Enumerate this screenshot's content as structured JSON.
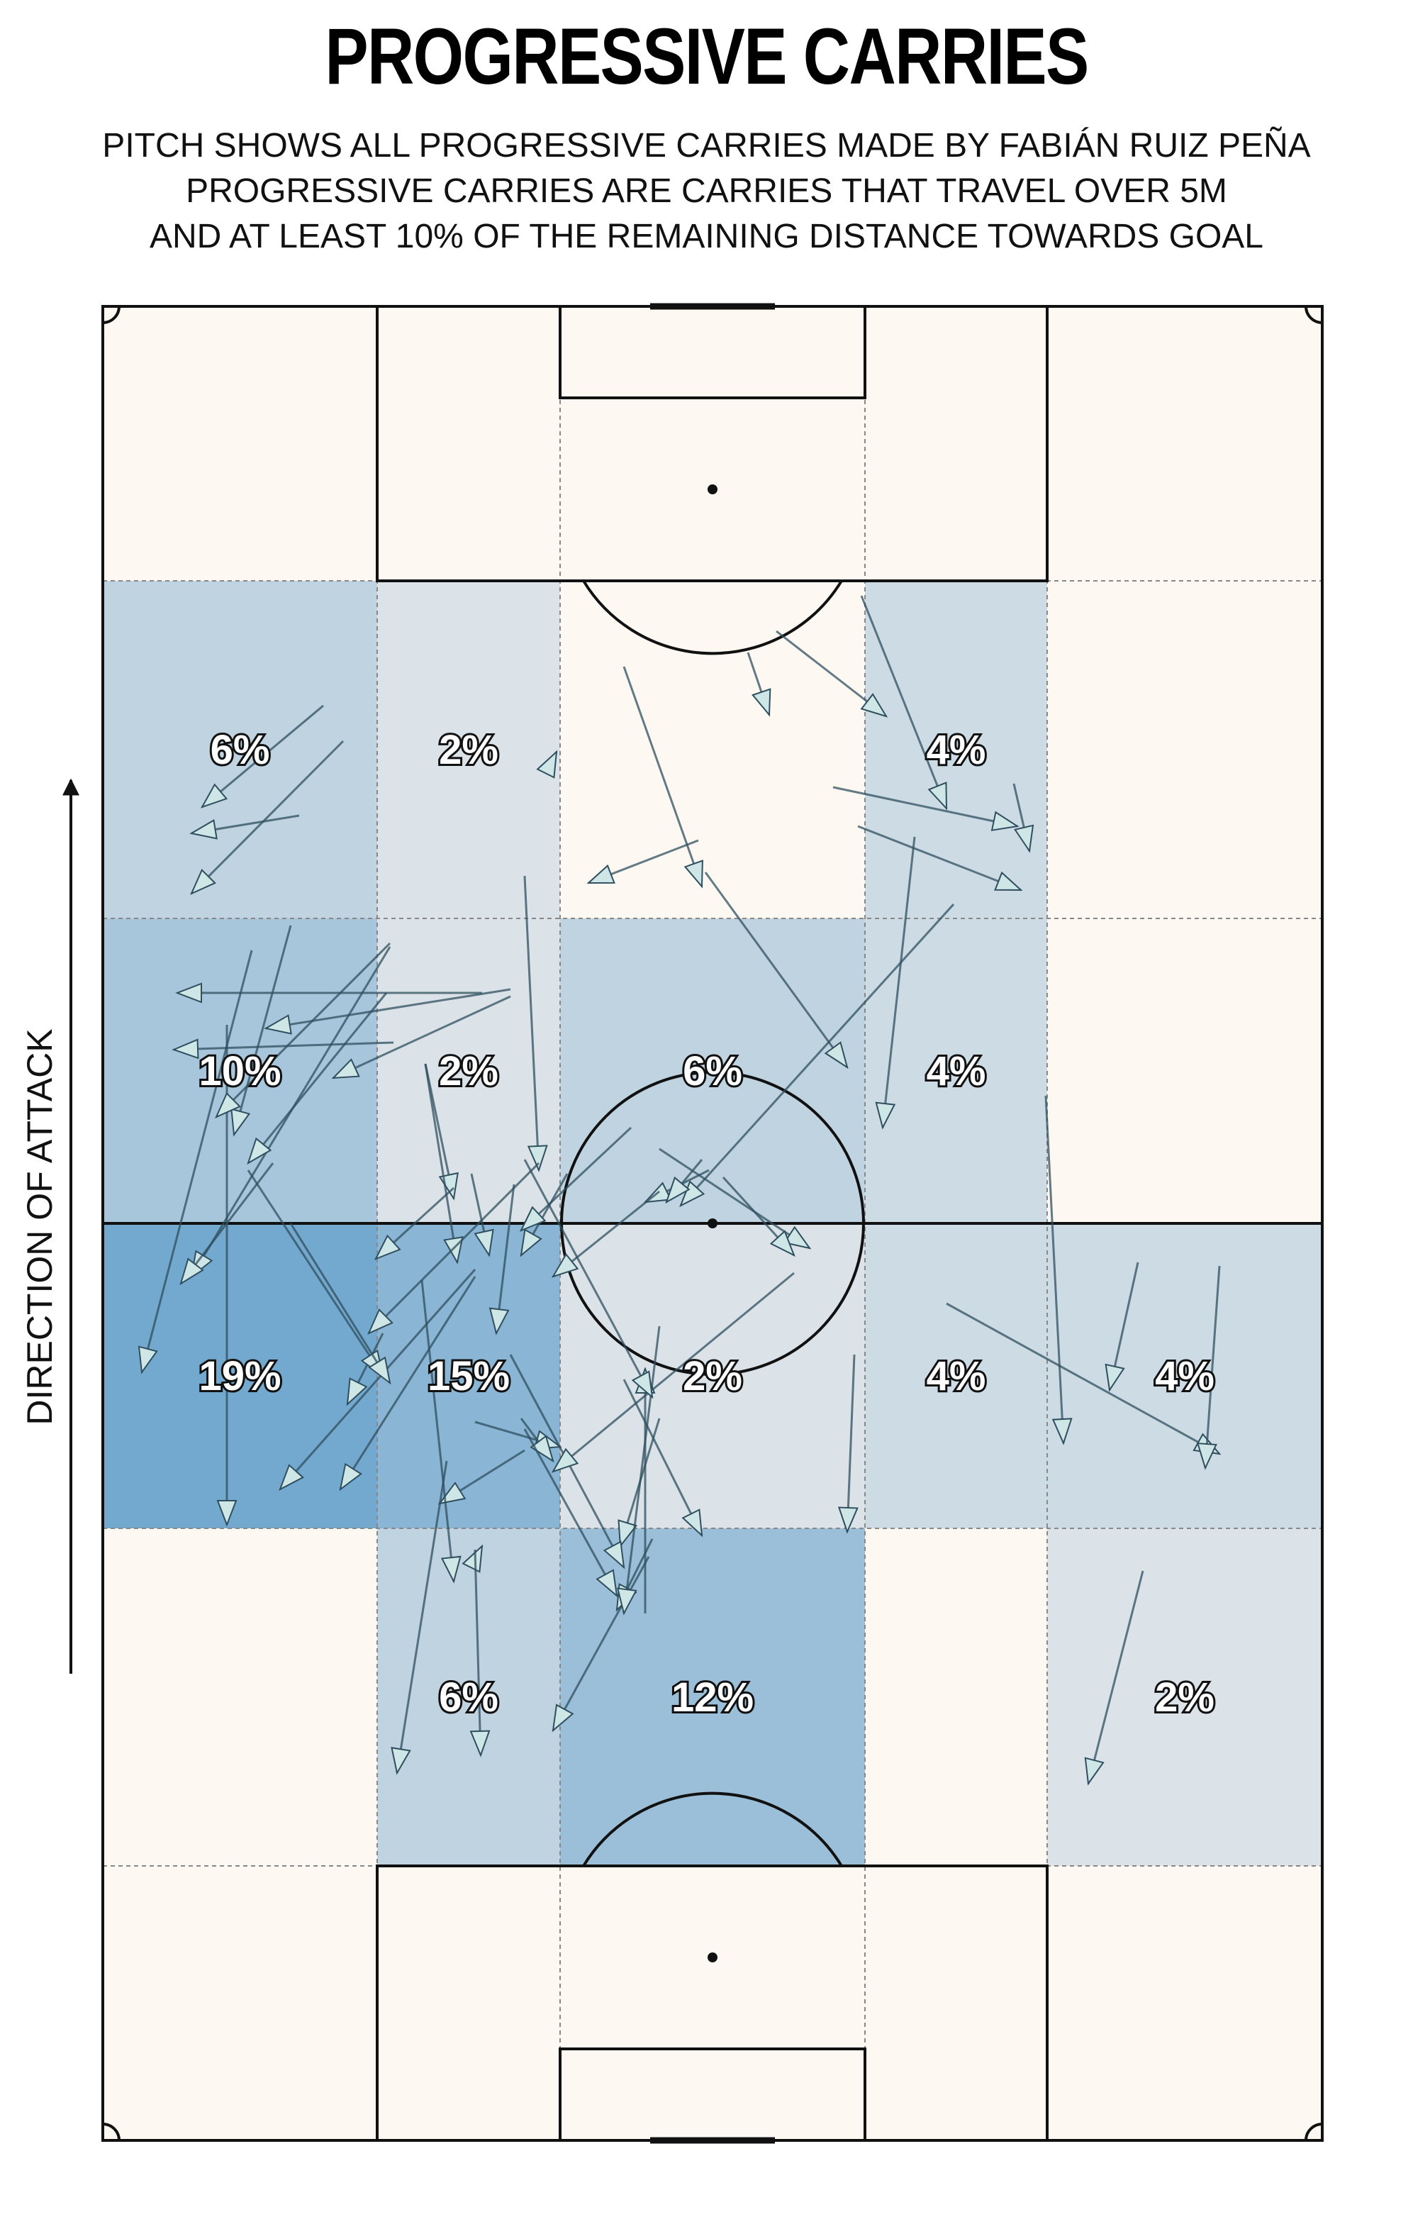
{
  "title": "PROGRESSIVE CARRIES",
  "subtitle_lines": [
    "PITCH SHOWS ALL PROGRESSIVE CARRIES MADE BY FABIÁN RUIZ PEÑA",
    "PROGRESSIVE CARRIES ARE CARRIES THAT TRAVEL OVER 5M",
    "AND AT LEAST 10% OF THE REMAINING DISTANCE TOWARDS GOAL"
  ],
  "attack_label": "DIRECTION OF ATTACK",
  "colors": {
    "pitch": "#fdf9f2",
    "lines": "#111111",
    "arrow_fill": "#cfe6e6",
    "arrow_stroke": "#2f4f5f",
    "heat_max": "#74a9cf"
  },
  "chart_data": {
    "type": "heatmap",
    "grid": "5 columns x 6 rows, direction of attack upward",
    "zones": [
      {
        "row": 1,
        "col": 0,
        "label": "6%",
        "value": 6
      },
      {
        "row": 1,
        "col": 1,
        "label": "2%",
        "value": 2
      },
      {
        "row": 1,
        "col": 3,
        "label": "4%",
        "value": 4
      },
      {
        "row": 2,
        "col": 0,
        "label": "10%",
        "value": 10
      },
      {
        "row": 2,
        "col": 1,
        "label": "2%",
        "value": 2
      },
      {
        "row": 2,
        "col": 2,
        "label": "6%",
        "value": 6
      },
      {
        "row": 2,
        "col": 3,
        "label": "4%",
        "value": 4
      },
      {
        "row": 3,
        "col": 0,
        "label": "19%",
        "value": 19
      },
      {
        "row": 3,
        "col": 1,
        "label": "15%",
        "value": 15
      },
      {
        "row": 3,
        "col": 2,
        "label": "2%",
        "value": 2
      },
      {
        "row": 3,
        "col": 3,
        "label": "4%",
        "value": 4
      },
      {
        "row": 3,
        "col": 4,
        "label": "4%",
        "value": 4
      },
      {
        "row": 4,
        "col": 1,
        "label": "6%",
        "value": 6
      },
      {
        "row": 4,
        "col": 2,
        "label": "12%",
        "value": 12
      },
      {
        "row": 4,
        "col": 4,
        "label": "2%",
        "value": 2
      }
    ],
    "carries": [
      [
        285,
        1138,
        456,
        995
      ],
      [
        270,
        1260,
        484,
        1045
      ],
      [
        270,
        1175,
        422,
        1150
      ],
      [
        785,
        1060,
        780,
        1070
      ],
      [
        830,
        1245,
        985,
        1185
      ],
      [
        1085,
        1008,
        1055,
        920
      ],
      [
        1250,
        1010,
        1095,
        890
      ],
      [
        1435,
        1165,
        1175,
        1110
      ],
      [
        1440,
        1255,
        1210,
        1165
      ],
      [
        1452,
        1200,
        1430,
        1105
      ],
      [
        1335,
        1140,
        1215,
        840
      ],
      [
        1245,
        1590,
        1290,
        1180
      ],
      [
        960,
        1700,
        1345,
        1275
      ],
      [
        1195,
        1505,
        995,
        1230
      ],
      [
        910,
        1695,
        1000,
        1650
      ],
      [
        1142,
        1760,
        930,
        1620
      ],
      [
        1565,
        1960,
        1605,
        1780
      ],
      [
        1500,
        2035,
        1475,
        1545
      ],
      [
        1720,
        2050,
        1335,
        1838
      ],
      [
        1700,
        2070,
        1720,
        1785
      ],
      [
        1535,
        2515,
        1612,
        2215
      ],
      [
        1195,
        2160,
        1205,
        1910
      ],
      [
        780,
        1800,
        930,
        1680
      ],
      [
        680,
        2180,
        675,
        2190
      ],
      [
        875,
        2180,
        930,
        2000
      ],
      [
        678,
        2475,
        670,
        2185
      ],
      [
        560,
        2500,
        630,
        2060
      ],
      [
        990,
        1250,
        880,
        940
      ],
      [
        200,
        1935,
        355,
        1340
      ],
      [
        320,
        2150,
        320,
        1445
      ],
      [
        330,
        1600,
        410,
        1305
      ],
      [
        305,
        1575,
        550,
        1330
      ],
      [
        270,
        1800,
        550,
        1335
      ],
      [
        245,
        1480,
        555,
        1470
      ],
      [
        375,
        1450,
        720,
        1395
      ],
      [
        250,
        1400,
        680,
        1400
      ],
      [
        350,
        1640,
        545,
        1400
      ],
      [
        255,
        1810,
        385,
        1640
      ],
      [
        395,
        2100,
        670,
        1790
      ],
      [
        480,
        2100,
        670,
        1800
      ],
      [
        490,
        1980,
        540,
        1880
      ],
      [
        540,
        1940,
        350,
        1650
      ],
      [
        550,
        1950,
        410,
        1725
      ],
      [
        640,
        1690,
        600,
        1500
      ],
      [
        645,
        1780,
        600,
        1500
      ],
      [
        690,
        1770,
        665,
        1655
      ],
      [
        760,
        1650,
        740,
        1235
      ],
      [
        700,
        1880,
        725,
        1670
      ],
      [
        530,
        1775,
        640,
        1675
      ],
      [
        520,
        1880,
        760,
        1640
      ],
      [
        735,
        1770,
        800,
        1655
      ],
      [
        620,
        2120,
        740,
        2045
      ],
      [
        790,
        2040,
        670,
        2005
      ],
      [
        780,
        2060,
        735,
        2000
      ],
      [
        1120,
        1770,
        1020,
        1660
      ],
      [
        990,
        2165,
        880,
        1945
      ],
      [
        880,
        2210,
        720,
        1910
      ],
      [
        870,
        2250,
        740,
        2015
      ],
      [
        870,
        2270,
        920,
        2170
      ],
      [
        780,
        2440,
        915,
        2195
      ],
      [
        640,
        2230,
        595,
        1805
      ],
      [
        780,
        2075,
        1120,
        1795
      ],
      [
        940,
        1695,
        990,
        1635
      ],
      [
        910,
        1930,
        910,
        2275
      ],
      [
        880,
        2275,
        930,
        1870
      ],
      [
        470,
        1520,
        720,
        1405
      ],
      [
        735,
        1735,
        890,
        1590
      ],
      [
        920,
        1970,
        740,
        1635
      ]
    ]
  }
}
